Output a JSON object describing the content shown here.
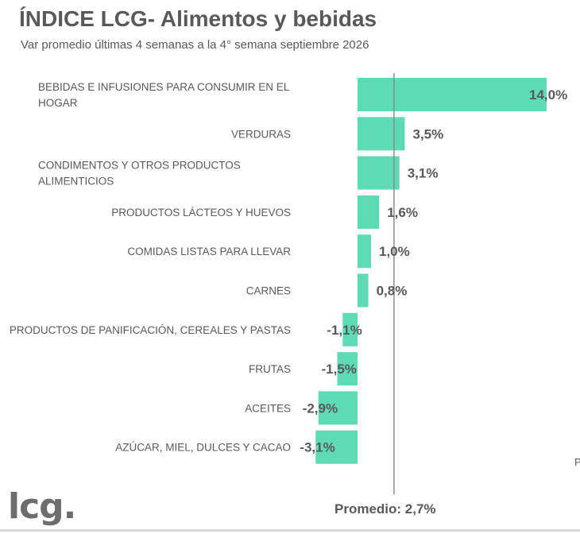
{
  "header": {
    "title": "ÍNDICE LCG- Alimentos y bebidas",
    "subtitle": "Var promedio últimas 4 semanas a la 4° semana septiembre 2026"
  },
  "chart_data": {
    "type": "bar",
    "orientation": "horizontal",
    "categories": [
      [
        "BEBIDAS E INFUSIONES PARA CONSUMIR EN EL",
        "HOGAR"
      ],
      [
        "VERDURAS"
      ],
      [
        "CONDIMENTOS Y OTROS PRODUCTOS",
        "ALIMENTICIOS"
      ],
      [
        "PRODUCTOS LÁCTEOS Y HUEVOS"
      ],
      [
        "COMIDAS LISTAS PARA LLEVAR"
      ],
      [
        "CARNES"
      ],
      [
        "PRODUCTOS DE PANIFICACIÓN, CEREALES Y PASTAS"
      ],
      [
        "FRUTAS"
      ],
      [
        "ACEITES"
      ],
      [
        "AZÚCAR, MIEL, DULCES Y CACAO"
      ]
    ],
    "values": [
      14.0,
      3.5,
      3.1,
      1.6,
      1.0,
      0.8,
      -1.1,
      -1.5,
      -2.9,
      -3.1
    ],
    "value_labels": [
      "14,0%",
      "3,5%",
      "3,1%",
      "1,6%",
      "1,0%",
      "0,8%",
      "-1,1%",
      "-1,5%",
      "-2,9%",
      "-3,1%"
    ],
    "reference_line": {
      "value": 2.7,
      "label": "Promedio: 2,7%"
    },
    "bar_color": "#5ddbb5",
    "line_color": "#8c8c8c"
  },
  "logo": {
    "text": "lcg."
  },
  "stray_text": "P"
}
